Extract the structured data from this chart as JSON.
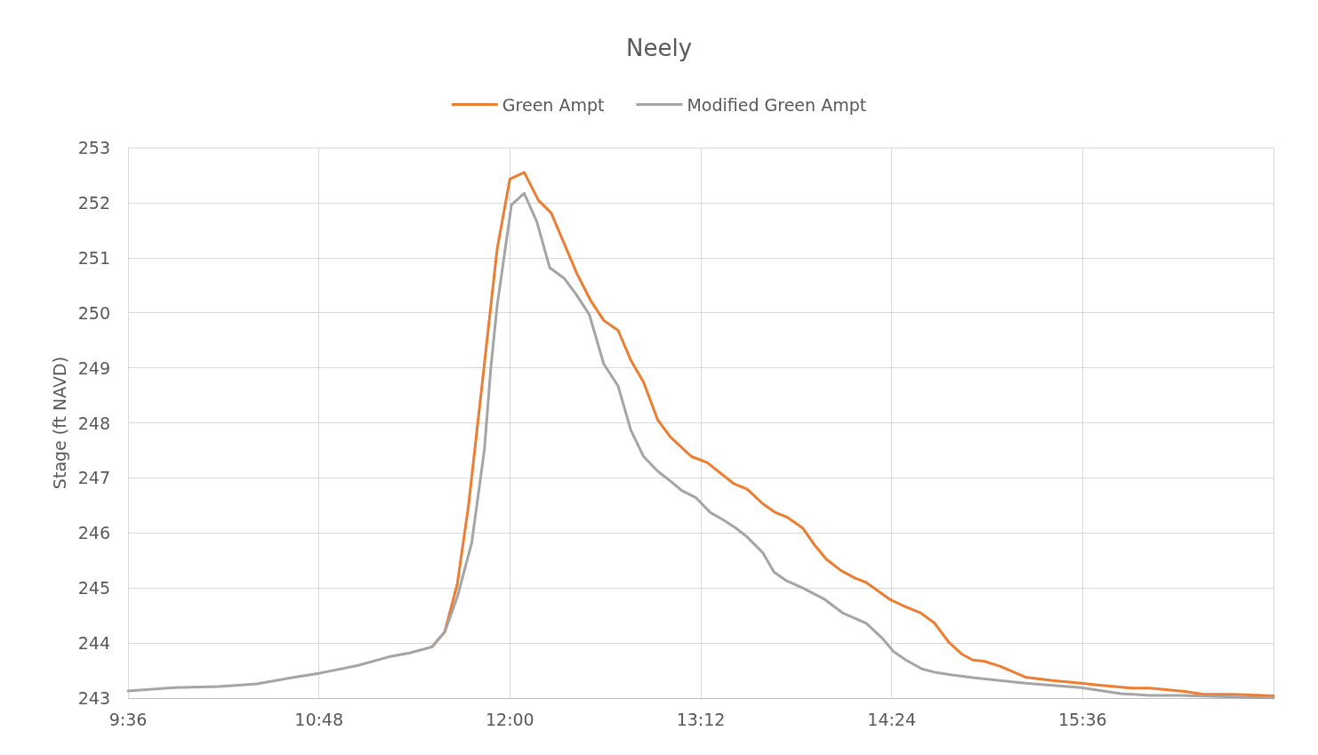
{
  "chart_data": {
    "type": "line",
    "title": "Neely",
    "ylabel": "Stage (ft NAVD)",
    "legend": "top",
    "grid": true,
    "marker": "none",
    "line_style": "solid",
    "xlim": [
      9.6,
      16.8
    ],
    "xticks": [
      {
        "value": 9.6,
        "label": "9:36"
      },
      {
        "value": 10.8,
        "label": "10:48"
      },
      {
        "value": 12,
        "label": "12:00"
      },
      {
        "value": 13.2,
        "label": "13:12"
      },
      {
        "value": 14.4,
        "label": "14:24"
      },
      {
        "value": 15.6,
        "label": "15:36"
      },
      {
        "value": 16.8,
        "label": null
      }
    ],
    "ylim": [
      243,
      253
    ],
    "yticks": [
      243,
      244,
      245,
      246,
      247,
      248,
      249,
      250,
      251,
      252,
      253
    ],
    "series": [
      {
        "name": "Green Ampt",
        "color": "#ed7d31",
        "x": [
          11.51,
          11.59,
          11.67,
          11.74,
          11.82,
          11.92,
          12.0,
          12.09,
          12.18,
          12.26,
          12.42,
          12.51,
          12.59,
          12.68,
          12.76,
          12.84,
          12.93,
          13.01,
          13.14,
          13.24,
          13.41,
          13.49,
          13.59,
          13.67,
          13.74,
          13.84,
          13.91,
          13.99,
          14.08,
          14.17,
          14.24,
          14.39,
          14.47,
          14.58,
          14.67,
          14.76,
          14.84,
          14.91,
          14.98,
          15.08,
          15.24,
          15.41,
          15.59,
          15.69,
          15.91,
          16.02,
          16.24,
          16.36,
          16.54,
          16.8
        ],
        "values": [
          243.93,
          244.2,
          245.08,
          246.5,
          248.56,
          251.16,
          252.43,
          252.55,
          252.04,
          251.81,
          250.72,
          250.21,
          249.86,
          249.68,
          249.14,
          248.74,
          248.05,
          247.74,
          247.39,
          247.28,
          246.89,
          246.8,
          246.53,
          246.37,
          246.29,
          246.09,
          245.8,
          245.52,
          245.32,
          245.18,
          245.1,
          244.79,
          244.68,
          244.55,
          244.36,
          244.01,
          243.8,
          243.69,
          243.67,
          243.58,
          243.38,
          243.32,
          243.27,
          243.24,
          243.18,
          243.18,
          243.12,
          243.07,
          243.07,
          243.04
        ]
      },
      {
        "name": "Modified Green Ampt",
        "color": "#a5a5a5",
        "x": [
          9.6,
          9.89,
          10.17,
          10.41,
          10.63,
          10.8,
          11.04,
          11.24,
          11.37,
          11.51,
          11.59,
          11.67,
          11.76,
          11.84,
          11.88,
          11.92,
          12.01,
          12.09,
          12.17,
          12.25,
          12.34,
          12.42,
          12.5,
          12.59,
          12.68,
          12.76,
          12.84,
          12.93,
          13.01,
          13.08,
          13.17,
          13.26,
          13.34,
          13.42,
          13.49,
          13.59,
          13.66,
          13.74,
          13.84,
          13.98,
          14.09,
          14.24,
          14.34,
          14.41,
          14.49,
          14.59,
          14.67,
          14.78,
          14.91,
          15.24,
          15.59,
          15.84,
          16.02,
          16.21,
          16.8
        ],
        "values": [
          243.13,
          243.19,
          243.21,
          243.26,
          243.37,
          243.45,
          243.59,
          243.75,
          243.82,
          243.93,
          244.2,
          244.84,
          245.82,
          247.52,
          248.99,
          250.13,
          251.96,
          252.17,
          251.65,
          250.82,
          250.63,
          250.32,
          249.96,
          249.07,
          248.67,
          247.87,
          247.39,
          247.12,
          246.94,
          246.77,
          246.64,
          246.37,
          246.24,
          246.09,
          245.93,
          245.64,
          245.29,
          245.13,
          245.0,
          244.79,
          244.55,
          244.36,
          244.09,
          243.85,
          243.69,
          243.53,
          243.47,
          243.42,
          243.37,
          243.27,
          243.19,
          243.08,
          243.05,
          243.05,
          243.0
        ]
      }
    ]
  }
}
